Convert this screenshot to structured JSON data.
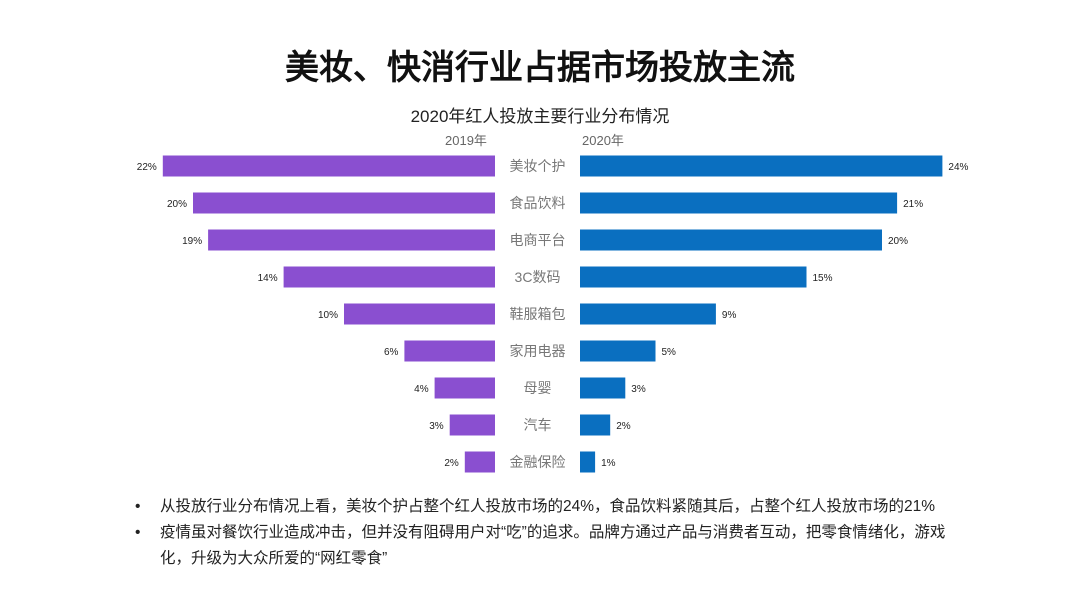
{
  "slide_title": "美妆、快消行业占据市场投放主流",
  "chart_data": {
    "type": "bar",
    "title": "2020年红人投放主要行业分布情况",
    "categories": [
      "美妆个护",
      "食品饮料",
      "电商平台",
      "3C数码",
      "鞋服箱包",
      "家用电器",
      "母婴",
      "汽车",
      "金融保险"
    ],
    "series": [
      {
        "name": "2019年",
        "values": [
          22,
          20,
          19,
          14,
          10,
          6,
          4,
          3,
          2
        ],
        "labels": [
          "22%",
          "20%",
          "19%",
          "14%",
          "10%",
          "6%",
          "4%",
          "3%",
          "2%"
        ],
        "color": "#8a4fd0"
      },
      {
        "name": "2020年",
        "values": [
          24,
          21,
          20,
          15,
          9,
          5,
          3,
          2,
          1
        ],
        "labels": [
          "24%",
          "21%",
          "20%",
          "15%",
          "9%",
          "5%",
          "3%",
          "2%",
          "1%"
        ],
        "color": "#0a6fc0"
      }
    ],
    "unit": "%",
    "layout": "butterfly"
  },
  "bullets": [
    "从投放行业分布情况上看，美妆个护占整个红人投放市场的24%，食品饮料紧随其后，占整个红人投放市场的21%",
    "疫情虽对餐饮行业造成冲击，但并没有阻碍用户对“吃”的追求。品牌方通过产品与消费者互动，把零食情绪化，游戏化，升级为大众所爱的“网红零食”"
  ]
}
